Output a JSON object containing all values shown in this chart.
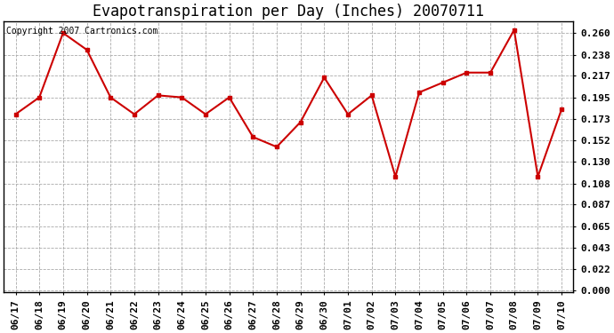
{
  "title": "Evapotranspiration per Day (Inches) 20070711",
  "copyright_text": "Copyright 2007 Cartronics.com",
  "line_color": "#cc0000",
  "marker": "s",
  "marker_size": 3,
  "background_color": "#ffffff",
  "grid_color": "#aaaaaa",
  "x_labels": [
    "06/17",
    "06/18",
    "06/19",
    "06/20",
    "06/21",
    "06/22",
    "06/23",
    "06/24",
    "06/25",
    "06/26",
    "06/27",
    "06/28",
    "06/29",
    "06/30",
    "07/01",
    "07/02",
    "07/03",
    "07/04",
    "07/05",
    "07/06",
    "07/07",
    "07/08",
    "07/09",
    "07/10"
  ],
  "y_values": [
    0.178,
    0.195,
    0.26,
    0.243,
    0.195,
    0.178,
    0.197,
    0.195,
    0.178,
    0.195,
    0.155,
    0.145,
    0.17,
    0.215,
    0.178,
    0.197,
    0.115,
    0.2,
    0.21,
    0.22,
    0.22,
    0.263,
    0.115,
    0.183
  ],
  "y_ticks": [
    0.0,
    0.022,
    0.043,
    0.065,
    0.087,
    0.108,
    0.13,
    0.152,
    0.173,
    0.195,
    0.217,
    0.238,
    0.26
  ],
  "ylim_min": -0.002,
  "ylim_max": 0.272,
  "title_fontsize": 12,
  "tick_fontsize": 8,
  "copyright_fontsize": 7
}
